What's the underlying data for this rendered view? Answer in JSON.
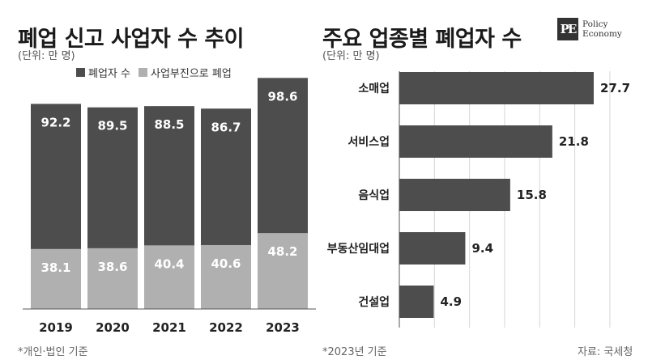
{
  "logo": {
    "mark": "PE",
    "line1": "Policy",
    "line2": "Economy"
  },
  "left_chart": {
    "title": "폐업 신고 사업자 수 추이",
    "unit": "(단위: 만 명)",
    "note": "*개인·법인 기준"
  },
  "right_chart": {
    "title": "주요 업종별 폐업자 수",
    "unit": "(단위: 만 명)",
    "note": "*2023년 기준",
    "source": "자료: 국세청"
  },
  "colors": {
    "dark": "#4d4d4d",
    "light": "#b0b0b0",
    "grid": "#d6d6d6",
    "axis": "#555555"
  },
  "chart_data": [
    {
      "type": "bar",
      "stacked": true,
      "title": "폐업 신고 사업자 수 추이",
      "ylabel": "(단위: 만 명)",
      "categories": [
        "2019",
        "2020",
        "2021",
        "2022",
        "2023"
      ],
      "series": [
        {
          "name": "사업부진으로 폐업",
          "values": [
            38.1,
            38.6,
            40.4,
            40.6,
            48.2
          ],
          "color": "#b0b0b0"
        },
        {
          "name": "폐업자 수",
          "values": [
            92.2,
            89.5,
            88.5,
            86.7,
            98.6
          ],
          "color": "#4d4d4d"
        }
      ],
      "legend_position": "top-left",
      "grid": false
    },
    {
      "type": "bar",
      "orientation": "horizontal",
      "title": "주요 업종별 폐업자 수",
      "ylabel": "(단위: 만 명)",
      "categories": [
        "소매업",
        "서비스업",
        "음식업",
        "부동산임대업",
        "건설업"
      ],
      "values": [
        27.7,
        21.8,
        15.8,
        9.4,
        4.9
      ],
      "xlim": [
        0,
        30
      ],
      "grid": true
    }
  ]
}
